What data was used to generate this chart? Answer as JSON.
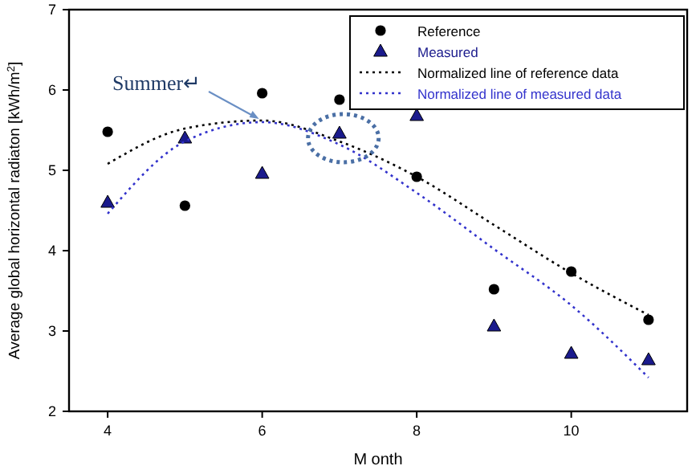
{
  "chart_data": {
    "type": "scatter",
    "xlabel": "M onth",
    "ylabel": "Average global horizontal radiaton [kWh/m$^{2}$]",
    "x": [
      4,
      5,
      6,
      7,
      8,
      9,
      10,
      11
    ],
    "xlim": [
      3.5,
      11.5
    ],
    "xticks": [
      4,
      6,
      8,
      10
    ],
    "ylim": [
      2,
      7
    ],
    "yticks": [
      2,
      3,
      4,
      5,
      6,
      7
    ],
    "grid": false,
    "legend": "top right",
    "series": [
      {
        "name": "Reference",
        "marker": "circle",
        "color": "#000000",
        "values": [
          5.48,
          4.56,
          5.96,
          5.88,
          4.92,
          3.52,
          3.74,
          3.14
        ]
      },
      {
        "name": "Measured",
        "marker": "triangle",
        "color": "#1a1a8c",
        "values": [
          4.6,
          5.4,
          4.96,
          5.46,
          5.68,
          3.06,
          2.72,
          2.64
        ]
      },
      {
        "name": "Normalized line of reference data",
        "type": "line",
        "marker": "none",
        "line_style": "dotted",
        "color": "#000000",
        "values": [
          5.08,
          5.52,
          5.62,
          5.36,
          4.92,
          4.32,
          3.72,
          3.2
        ]
      },
      {
        "name": "Normalized line of measured data",
        "type": "line",
        "marker": "none",
        "line_style": "dotted",
        "color": "#3333cc",
        "values": [
          4.46,
          5.36,
          5.6,
          5.32,
          4.72,
          4.02,
          3.32,
          2.42
        ]
      }
    ],
    "annotations": [
      "Summer↵"
    ]
  }
}
